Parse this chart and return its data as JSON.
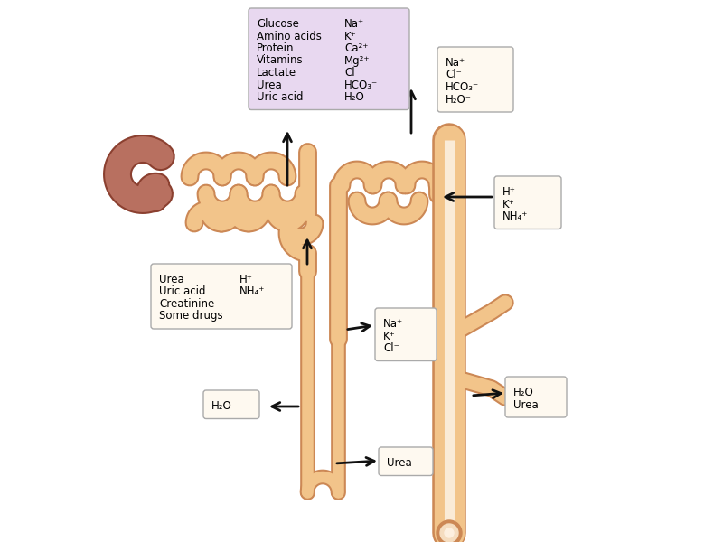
{
  "bg_color": "#ffffff",
  "tubule_fill": "#f2c48a",
  "tubule_edge": "#cc8855",
  "tubule_inner": "#faebd7",
  "glom_fill": "#b87060",
  "glom_edge": "#8b4030",
  "arrow_color": "#111111",
  "box_bg_large": "#e8d8f0",
  "box_bg_small": "#fef9f0",
  "box_edge": "#aaaaaa",
  "label_large_left": [
    "Glucose",
    "Amino acids",
    "Protein",
    "Vitamins",
    "Lactate",
    "Urea",
    "Uric acid"
  ],
  "label_large_right": [
    "Na⁺",
    "K⁺",
    "Ca²⁺",
    "Mg²⁺",
    "Cl⁻",
    "HCO₃⁻",
    "H₂O"
  ],
  "label_top_right": [
    "Na⁺",
    "Cl⁻",
    "HCO₃⁻",
    "H₂O⁻"
  ],
  "label_h_k_nh4": [
    "H⁺",
    "K⁺",
    "NH₄⁺"
  ],
  "label_prox_left": [
    "Urea",
    "Uric acid",
    "Creatinine",
    "Some drugs"
  ],
  "label_prox_right": [
    "H⁺",
    "NH₄⁺"
  ],
  "label_na_k_cl": [
    "Na⁺",
    "K⁺",
    "Cl⁻"
  ],
  "label_h2o": [
    "H₂O"
  ],
  "label_h2o_urea": [
    "H₂O",
    "Urea"
  ],
  "label_urea": [
    "Urea"
  ],
  "figsize": [
    8.0,
    6.0
  ],
  "dpi": 100
}
